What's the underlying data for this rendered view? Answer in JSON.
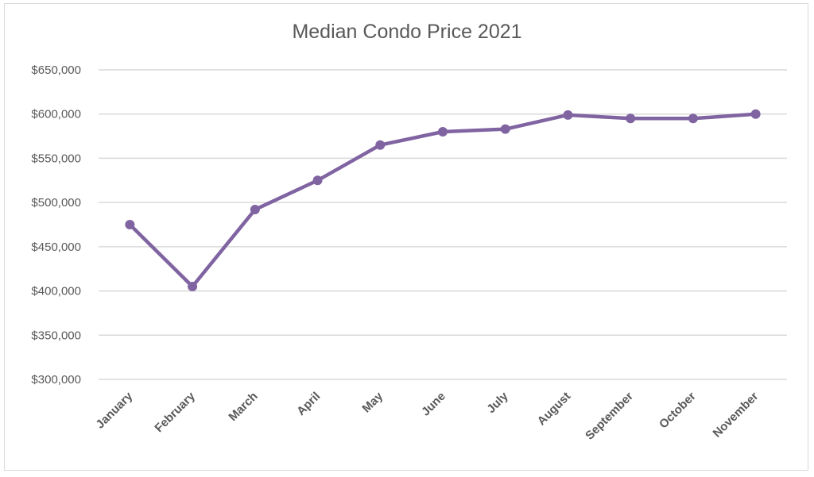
{
  "chart_data": {
    "type": "line",
    "title": "Median Condo Price 2021",
    "xlabel": "",
    "ylabel": "",
    "categories": [
      "January",
      "February",
      "March",
      "April",
      "May",
      "June",
      "July",
      "August",
      "September",
      "October",
      "November"
    ],
    "series": [
      {
        "values": [
          475000,
          405000,
          492000,
          525000,
          565000,
          580000,
          583000,
          599000,
          595000,
          595000,
          600000
        ],
        "color": "#8064a2"
      }
    ],
    "ylim": [
      300000,
      650000
    ],
    "yticks": [
      300000,
      350000,
      400000,
      450000,
      500000,
      550000,
      600000,
      650000
    ],
    "ytick_labels": [
      "$300,000",
      "$350,000",
      "$400,000",
      "$450,000",
      "$500,000",
      "$550,000",
      "$600,000",
      "$650,000"
    ],
    "grid": true,
    "legend": "none",
    "gridline_color": "#d9d9d9",
    "tick_text_color": "#595959"
  }
}
